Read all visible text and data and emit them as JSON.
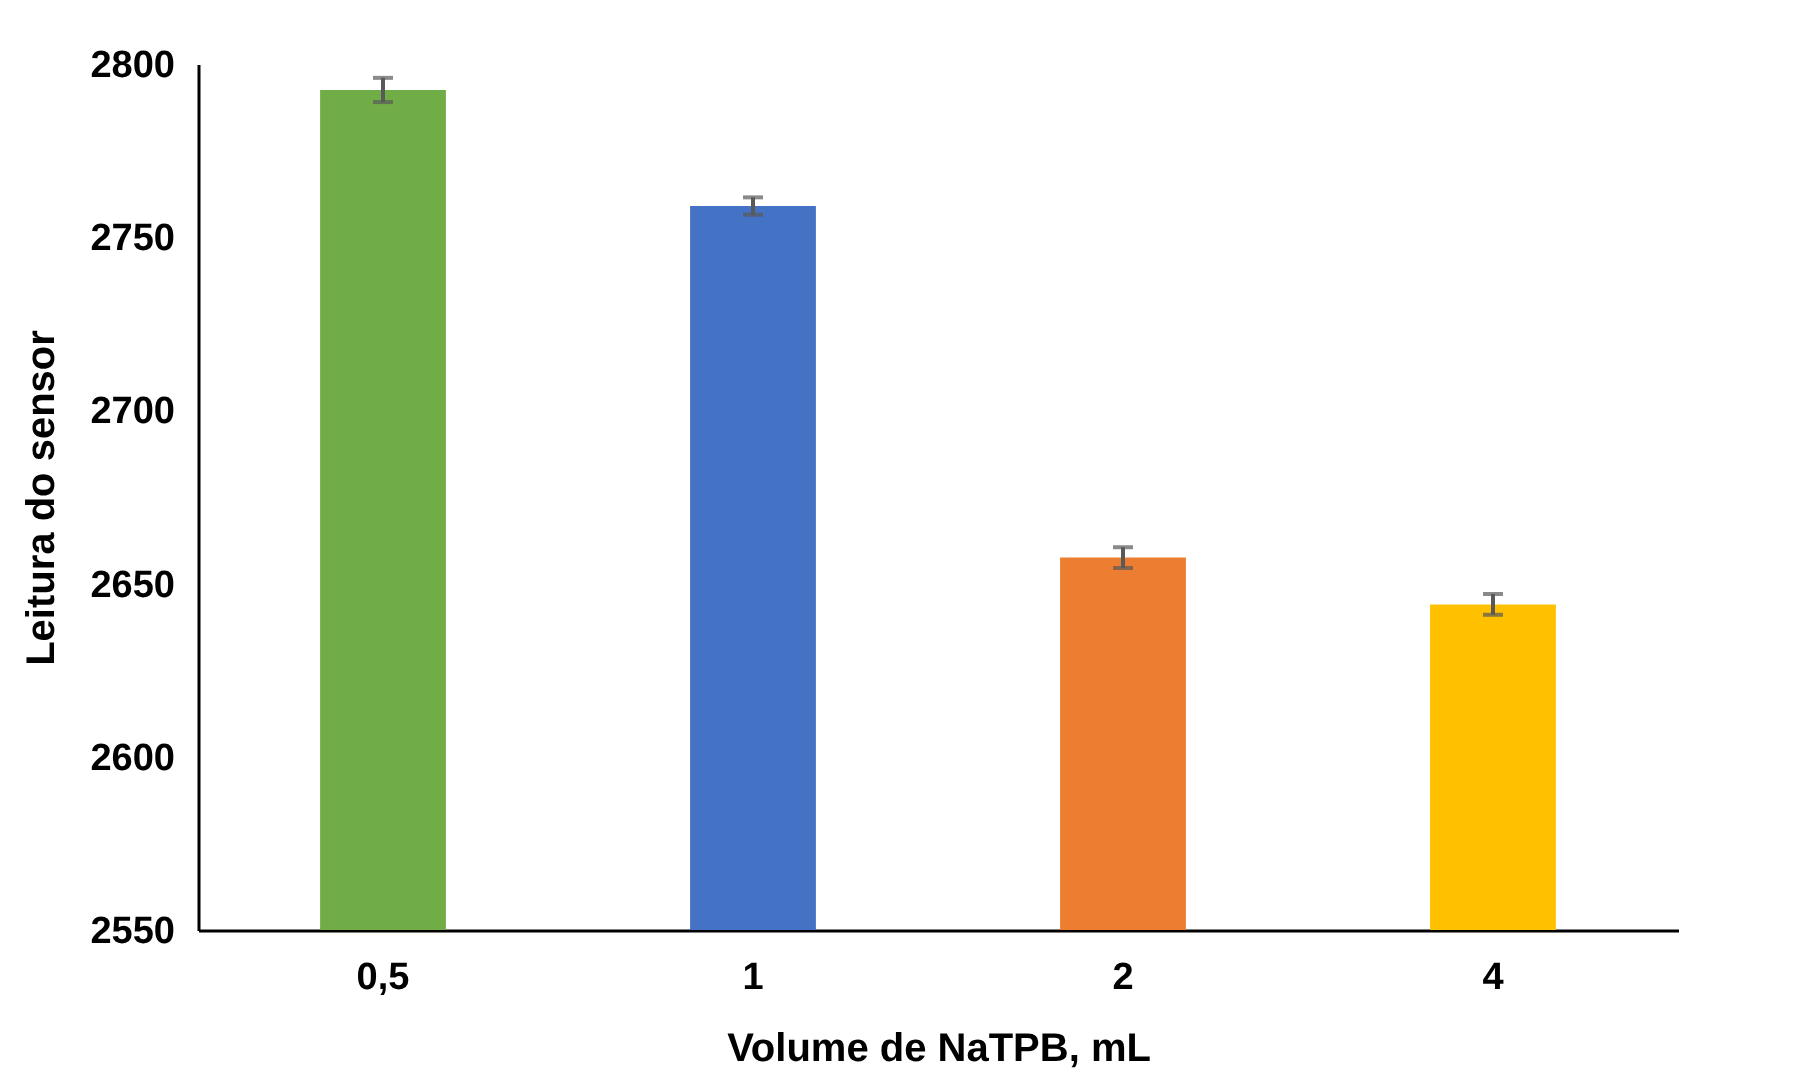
{
  "chart_data": {
    "type": "bar",
    "xlabel": "Volume de NaTPB, mL",
    "ylabel": "Leitura do sensor",
    "categories": [
      "0,5",
      "1",
      "2",
      "4"
    ],
    "values": [
      2792.5,
      2759,
      2657.5,
      2644
    ],
    "colors": [
      "#70ad47",
      "#4472c4",
      "#ed7d31",
      "#ffc000"
    ],
    "errors": [
      3.5,
      2.5,
      3,
      3
    ],
    "ylim": [
      2550,
      2800
    ],
    "yticks": [
      2550,
      2600,
      2650,
      2700,
      2750,
      2800
    ],
    "grid": false
  }
}
